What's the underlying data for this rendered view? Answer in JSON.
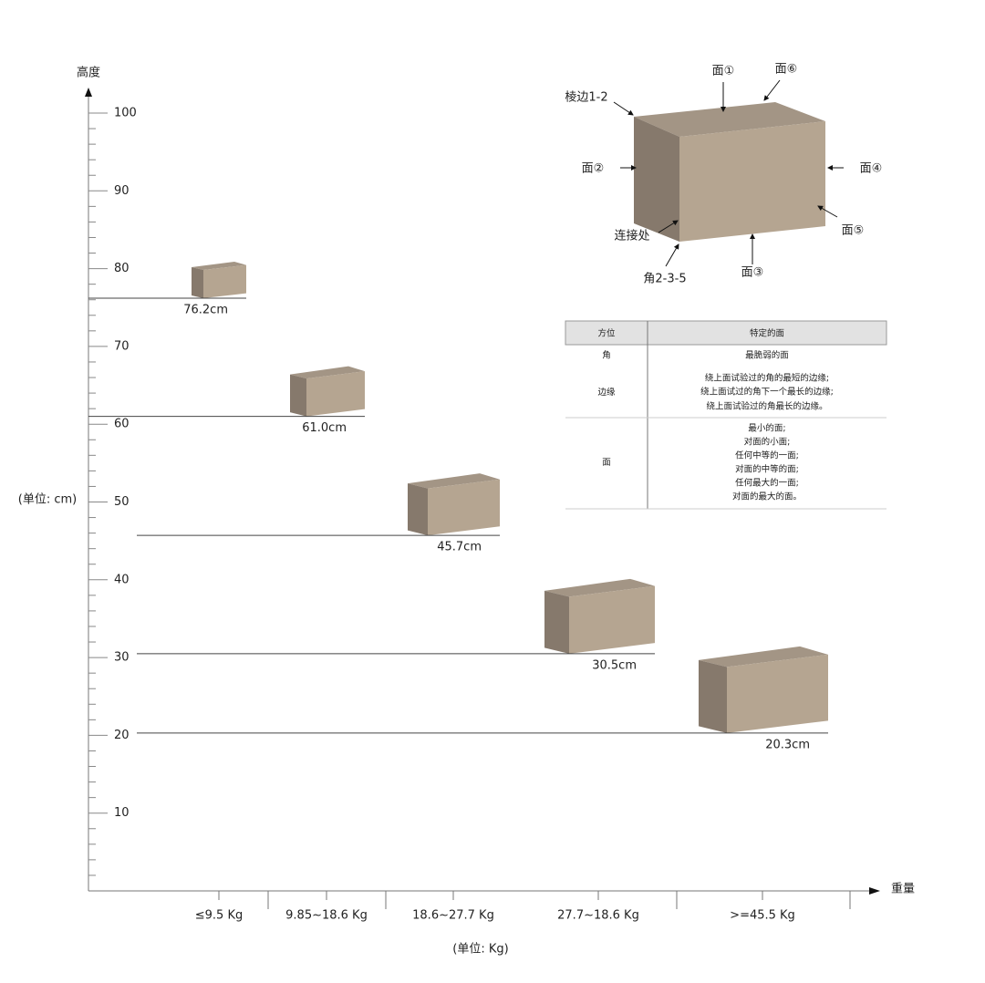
{
  "chart_data": {
    "type": "drop",
    "y_axis_label": "高度",
    "y_unit_label": "(单位: cm)",
    "x_axis_label": "重量",
    "x_unit_label": "(单位: Kg)",
    "categories": [
      "≤9.5 Kg",
      "9.85~18.6 Kg",
      "18.6~27.7 Kg",
      "27.7~18.6 Kg",
      ">=45.5 Kg"
    ],
    "values": [
      76.2,
      61.0,
      45.7,
      30.5,
      20.3
    ],
    "value_labels": [
      "76.2cm",
      "61.0cm",
      "45.7cm",
      "30.5cm",
      "20.3cm"
    ],
    "ylim": [
      0,
      100
    ],
    "yticks": [
      10,
      20,
      30,
      40,
      50,
      60,
      70,
      80,
      90,
      100
    ],
    "colors": {
      "front": "#b5a591",
      "side": "#86796c",
      "top": "#a39585"
    }
  },
  "diagram": {
    "labels": [
      "面①",
      "面⑥",
      "棱边1-2",
      "面②",
      "面④",
      "连接处",
      "面⑤",
      "角2-3-5",
      "面③"
    ]
  },
  "table": {
    "header": [
      "方位",
      "特定的面"
    ],
    "rows": [
      [
        "角",
        [
          "最脆弱的面"
        ]
      ],
      [
        "边缘",
        [
          "绕上面试验过的角的最短的边缘;",
          "绕上面试过的角下一个最长的边缘;",
          "绕上面试验过的角最长的边缘。"
        ]
      ],
      [
        "面",
        [
          "最小的面;",
          "对面的小面;",
          "任何中等的一面;",
          "对面的中等的面;",
          "任何最大的一面;",
          "对面的最大的面。"
        ]
      ]
    ]
  }
}
